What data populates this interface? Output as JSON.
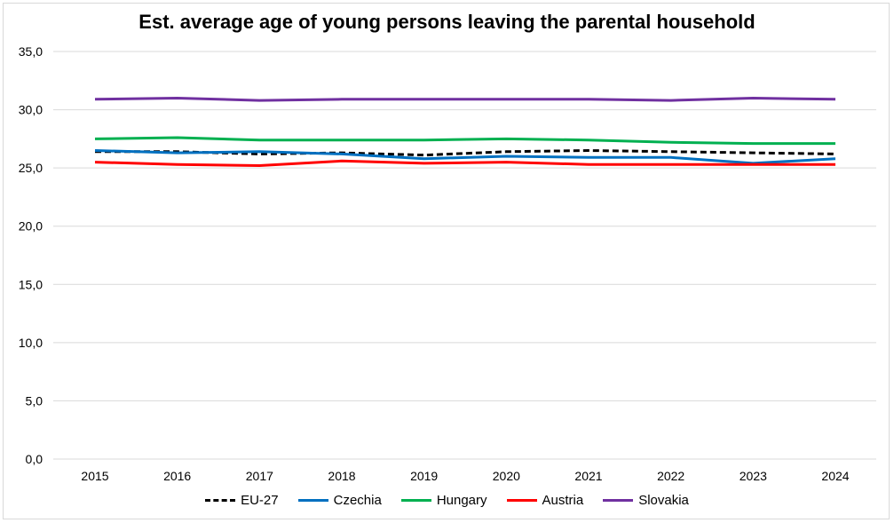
{
  "chart_data": {
    "type": "line",
    "title": "Est. average age of young persons leaving the parental household",
    "xlabel": "",
    "ylabel": "",
    "categories": [
      "2015",
      "2016",
      "2017",
      "2018",
      "2019",
      "2020",
      "2021",
      "2022",
      "2023",
      "2024"
    ],
    "ylim": [
      0,
      35
    ],
    "yticks": [
      0,
      5,
      10,
      15,
      20,
      25,
      30,
      35
    ],
    "ytick_labels": [
      "0,0",
      "5,0",
      "10,0",
      "15,0",
      "20,0",
      "25,0",
      "30,0",
      "35,0"
    ],
    "grid": true,
    "legend_position": "bottom",
    "series": [
      {
        "name": "EU-27",
        "color": "#000000",
        "dashed": true,
        "values": [
          26.4,
          26.4,
          26.2,
          26.3,
          26.1,
          26.4,
          26.5,
          26.4,
          26.3,
          26.2
        ]
      },
      {
        "name": "Czechia",
        "color": "#0070c0",
        "dashed": false,
        "values": [
          26.5,
          26.3,
          26.4,
          26.2,
          25.8,
          26.0,
          25.9,
          25.9,
          25.4,
          25.8
        ]
      },
      {
        "name": "Hungary",
        "color": "#00b050",
        "dashed": false,
        "values": [
          27.5,
          27.6,
          27.4,
          27.4,
          27.4,
          27.5,
          27.4,
          27.2,
          27.1,
          27.1
        ]
      },
      {
        "name": "Austria",
        "color": "#ff0000",
        "dashed": false,
        "values": [
          25.5,
          25.3,
          25.2,
          25.6,
          25.4,
          25.5,
          25.3,
          25.3,
          25.3,
          25.3
        ]
      },
      {
        "name": "Slovakia",
        "color": "#7030a0",
        "dashed": false,
        "values": [
          30.9,
          31.0,
          30.8,
          30.9,
          30.9,
          30.9,
          30.9,
          30.8,
          31.0,
          30.9
        ]
      }
    ]
  }
}
